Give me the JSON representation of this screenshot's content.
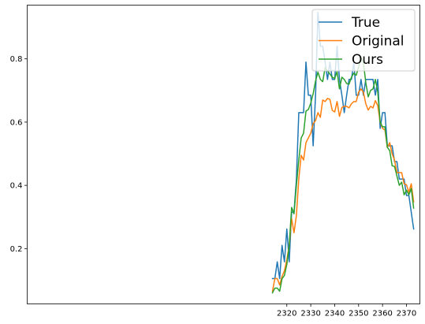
{
  "chart_data": {
    "type": "line",
    "title": "",
    "xlabel": "",
    "ylabel": "",
    "xlim": [
      2211.5,
      2375.6
    ],
    "ylim": [
      0.025,
      0.97
    ],
    "x_ticks": [
      2320,
      2330,
      2340,
      2350,
      2360,
      2370
    ],
    "y_ticks": [
      0.2,
      0.4,
      0.6,
      0.8
    ],
    "grid": false,
    "legend_position": "top-right",
    "x": [
      2314,
      2315,
      2316,
      2317,
      2318,
      2319,
      2320,
      2321,
      2322,
      2323,
      2324,
      2325,
      2326,
      2327,
      2328,
      2329,
      2330,
      2331,
      2332,
      2333,
      2334,
      2335,
      2336,
      2337,
      2338,
      2339,
      2340,
      2341,
      2342,
      2343,
      2344,
      2345,
      2346,
      2347,
      2348,
      2349,
      2350,
      2351,
      2352,
      2353,
      2354,
      2355,
      2356,
      2357,
      2358,
      2359,
      2360,
      2361,
      2362,
      2363,
      2364,
      2365,
      2366,
      2367,
      2368,
      2369,
      2370,
      2371,
      2372,
      2373
    ],
    "series": [
      {
        "name": "True",
        "color": "#1f77b4",
        "values": [
          0.105,
          0.105,
          0.158,
          0.105,
          0.21,
          0.158,
          0.262,
          0.158,
          0.315,
          0.315,
          0.42,
          0.63,
          0.63,
          0.63,
          0.79,
          0.685,
          0.685,
          0.525,
          0.685,
          0.948,
          0.84,
          0.84,
          0.79,
          0.735,
          0.79,
          0.735,
          0.735,
          0.84,
          0.735,
          0.685,
          0.63,
          0.685,
          0.735,
          0.735,
          0.79,
          0.685,
          0.685,
          0.735,
          0.685,
          0.735,
          0.735,
          0.735,
          0.735,
          0.685,
          0.735,
          0.58,
          0.63,
          0.63,
          0.525,
          0.525,
          0.525,
          0.475,
          0.475,
          0.42,
          0.42,
          0.42,
          0.368,
          0.368,
          0.315,
          0.262
        ]
      },
      {
        "name": "Original",
        "color": "#ff7f0e",
        "values": [
          0.065,
          0.105,
          0.105,
          0.085,
          0.112,
          0.13,
          0.165,
          0.21,
          0.295,
          0.25,
          0.305,
          0.42,
          0.495,
          0.48,
          0.535,
          0.55,
          0.565,
          0.595,
          0.605,
          0.63,
          0.615,
          0.67,
          0.665,
          0.675,
          0.672,
          0.637,
          0.632,
          0.665,
          0.618,
          0.646,
          0.65,
          0.65,
          0.645,
          0.658,
          0.665,
          0.665,
          0.695,
          0.705,
          0.695,
          0.658,
          0.638,
          0.65,
          0.645,
          0.668,
          0.652,
          0.6,
          0.58,
          0.575,
          0.52,
          0.535,
          0.5,
          0.48,
          0.44,
          0.44,
          0.44,
          0.405,
          0.402,
          0.378,
          0.405,
          0.348
        ]
      },
      {
        "name": "Ours",
        "color": "#2ca02c",
        "values": [
          0.06,
          0.075,
          0.075,
          0.065,
          0.105,
          0.115,
          0.15,
          0.21,
          0.33,
          0.31,
          0.4,
          0.48,
          0.55,
          0.565,
          0.635,
          0.64,
          0.66,
          0.69,
          0.73,
          0.758,
          0.735,
          0.728,
          0.772,
          0.762,
          0.752,
          0.742,
          0.738,
          0.76,
          0.705,
          0.742,
          0.735,
          0.722,
          0.72,
          0.742,
          0.755,
          0.748,
          0.775,
          0.805,
          0.788,
          0.725,
          0.68,
          0.7,
          0.705,
          0.735,
          0.695,
          0.6,
          0.585,
          0.585,
          0.52,
          0.51,
          0.462,
          0.46,
          0.43,
          0.4,
          0.41,
          0.37,
          0.385,
          0.37,
          0.39,
          0.328
        ]
      }
    ]
  }
}
